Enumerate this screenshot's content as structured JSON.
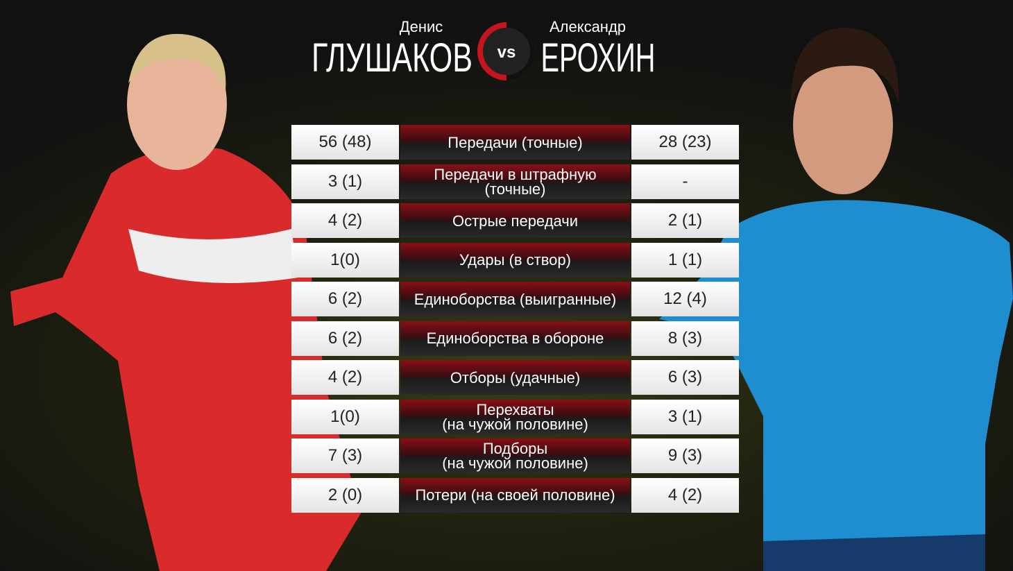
{
  "header": {
    "left_player": {
      "first_name": "Денис",
      "last_name": "ГЛУШАКОВ"
    },
    "vs": "vs",
    "right_player": {
      "first_name": "Александр",
      "last_name": "ЕРОХИН"
    }
  },
  "table": {
    "rows": [
      {
        "left": "56 (48)",
        "label": [
          "Передачи (точные)"
        ],
        "right": "28 (23)"
      },
      {
        "left": "3 (1)",
        "label": [
          "Передачи в штрафную",
          "(точные)"
        ],
        "right": "-"
      },
      {
        "left": "4 (2)",
        "label": [
          "Острые передачи"
        ],
        "right": "2 (1)"
      },
      {
        "left": "1(0)",
        "label": [
          "Удары (в створ)"
        ],
        "right": "1 (1)"
      },
      {
        "left": "6 (2)",
        "label": [
          "Единоборства (выигранные)"
        ],
        "right": "12 (4)"
      },
      {
        "left": "6 (2)",
        "label": [
          "Единоборства в обороне"
        ],
        "right": "8 (3)"
      },
      {
        "left": "4 (2)",
        "label": [
          "Отборы (удачные)"
        ],
        "right": "6 (3)"
      },
      {
        "left": "1(0)",
        "label": [
          "Перехваты",
          "(на чужой половине)"
        ],
        "right": "3 (1)"
      },
      {
        "left": "7 (3)",
        "label": [
          "Подборы",
          "(на чужой половине)"
        ],
        "right": "9 (3)"
      },
      {
        "left": "2 (0)",
        "label": [
          "Потери (на своей половине)"
        ],
        "right": "4 (2)"
      }
    ]
  }
}
